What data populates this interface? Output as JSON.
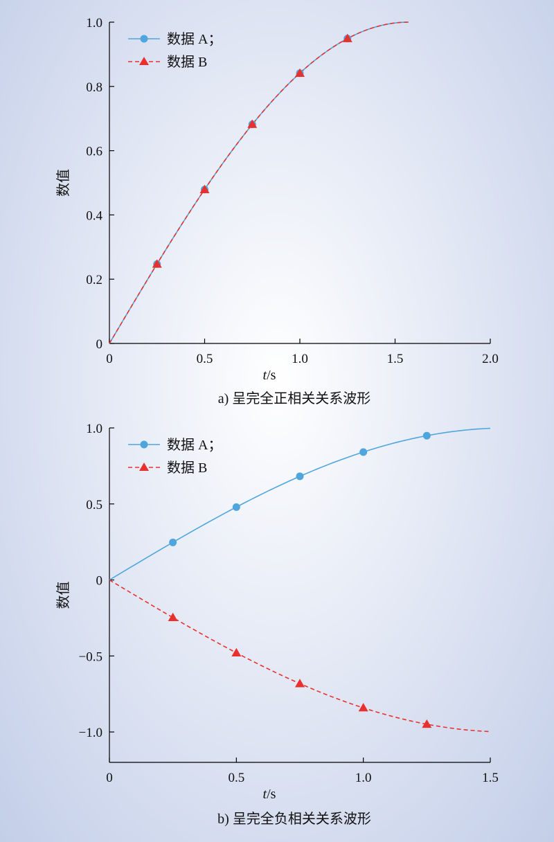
{
  "colors": {
    "series_a": "#4ea6dc",
    "series_b": "#e8312f",
    "axis": "#000000"
  },
  "chart_data": [
    {
      "type": "line",
      "caption": "a) 呈完全正相关关系波形",
      "xlabel_italic": "t",
      "xlabel_unit": "/s",
      "ylabel": "数值",
      "xlim": [
        0,
        2.0
      ],
      "ylim": [
        0,
        1.0
      ],
      "xticks": [
        0,
        0.5,
        1.0,
        1.5,
        2.0
      ],
      "xtick_labels": [
        "0",
        "0.5",
        "1.0",
        "1.5",
        "2.0"
      ],
      "yticks": [
        0,
        0.2,
        0.4,
        0.6,
        0.8,
        1.0
      ],
      "ytick_labels": [
        "0",
        "0.2",
        "0.4",
        "0.6",
        "0.8",
        "1.0"
      ],
      "curve_x_max": 1.5708,
      "legend_position": "top-left",
      "series": [
        {
          "name": "数据 A；",
          "function": "sin",
          "style": "solid",
          "marker": "circle",
          "x": [
            0.25,
            0.5,
            0.75,
            1.0,
            1.25
          ],
          "values": [
            0.247,
            0.479,
            0.682,
            0.841,
            0.949
          ]
        },
        {
          "name": "数据 B",
          "function": "sin",
          "style": "dashed",
          "marker": "triangle",
          "x": [
            0.25,
            0.5,
            0.75,
            1.0,
            1.25
          ],
          "values": [
            0.247,
            0.479,
            0.682,
            0.841,
            0.949
          ]
        }
      ]
    },
    {
      "type": "line",
      "caption": "b) 呈完全负相关关系波形",
      "xlabel_italic": "t",
      "xlabel_unit": "/s",
      "ylabel": "数值",
      "xlim": [
        0,
        1.5
      ],
      "ylim": [
        -1.2,
        1.0
      ],
      "xticks": [
        0,
        0.5,
        1.0,
        1.5
      ],
      "xtick_labels": [
        "0",
        "0.5",
        "1.0",
        "1.5"
      ],
      "yticks": [
        -1.0,
        -0.5,
        0,
        0.5,
        1.0
      ],
      "ytick_labels": [
        "−1.0",
        "−0.5",
        "0",
        "0.5",
        "1.0"
      ],
      "curve_x_max": 1.5,
      "legend_position": "top-left",
      "series": [
        {
          "name": "数据 A；",
          "function": "sin",
          "style": "solid",
          "marker": "circle",
          "x": [
            0.25,
            0.5,
            0.75,
            1.0,
            1.25
          ],
          "values": [
            0.247,
            0.479,
            0.682,
            0.841,
            0.949
          ]
        },
        {
          "name": "数据 B",
          "function": "neg-sin",
          "style": "dashed",
          "marker": "triangle",
          "x": [
            0.25,
            0.5,
            0.75,
            1.0,
            1.25
          ],
          "values": [
            -0.247,
            -0.479,
            -0.682,
            -0.841,
            -0.949
          ]
        }
      ]
    }
  ]
}
